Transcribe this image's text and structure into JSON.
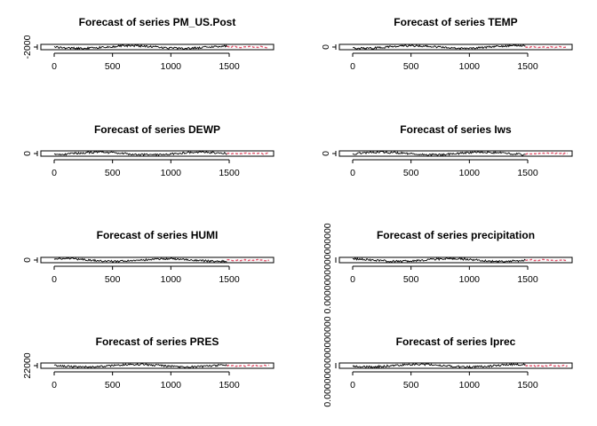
{
  "chart_data": [
    {
      "type": "line",
      "title": "Forecast of series PM_US.Post",
      "xticks": [
        "0",
        "500",
        "1000",
        "1500"
      ],
      "xlim": [
        0,
        1850
      ],
      "yticks": [
        "-2000"
      ],
      "history_range": [
        0,
        1480
      ],
      "forecast_range": [
        1480,
        1840
      ],
      "forecast_color": "#DF536B",
      "history_color": "#000000"
    },
    {
      "type": "line",
      "title": "Forecast of series TEMP",
      "xticks": [
        "0",
        "500",
        "1000",
        "1500"
      ],
      "xlim": [
        0,
        1850
      ],
      "yticks": [
        "0"
      ],
      "history_range": [
        0,
        1480
      ],
      "forecast_range": [
        1480,
        1840
      ],
      "forecast_color": "#DF536B",
      "history_color": "#000000"
    },
    {
      "type": "line",
      "title": "Forecast of series DEWP",
      "xticks": [
        "0",
        "500",
        "1000",
        "1500"
      ],
      "xlim": [
        0,
        1850
      ],
      "yticks": [
        "0"
      ],
      "history_range": [
        0,
        1480
      ],
      "forecast_range": [
        1480,
        1840
      ],
      "forecast_color": "#DF536B",
      "history_color": "#000000"
    },
    {
      "type": "line",
      "title": "Forecast of series Iws",
      "xticks": [
        "0",
        "500",
        "1000",
        "1500"
      ],
      "xlim": [
        0,
        1850
      ],
      "yticks": [
        "0"
      ],
      "history_range": [
        0,
        1480
      ],
      "forecast_range": [
        1480,
        1840
      ],
      "forecast_color": "#DF536B",
      "history_color": "#000000"
    },
    {
      "type": "line",
      "title": "Forecast of series HUMI",
      "xticks": [
        "0",
        "500",
        "1000",
        "1500"
      ],
      "xlim": [
        0,
        1850
      ],
      "yticks": [
        "0"
      ],
      "history_range": [
        0,
        1480
      ],
      "forecast_range": [
        1480,
        1840
      ],
      "forecast_color": "#DF536B",
      "history_color": "#000000"
    },
    {
      "type": "line",
      "title": "Forecast of series precipitation",
      "xticks": [
        "0",
        "500",
        "1000",
        "1500"
      ],
      "xlim": [
        0,
        1850
      ],
      "yticks": [
        "0.0000000000000000 0.0000000000000000"
      ],
      "history_range": [
        0,
        1480
      ],
      "forecast_range": [
        1480,
        1840
      ],
      "forecast_color": "#DF536B",
      "history_color": "#000000"
    },
    {
      "type": "line",
      "title": "Forecast of series PRES",
      "xticks": [
        "0",
        "500",
        "1000",
        "1500"
      ],
      "xlim": [
        0,
        1850
      ],
      "yticks": [
        "22000"
      ],
      "history_range": [
        0,
        1480
      ],
      "forecast_range": [
        1480,
        1840
      ],
      "forecast_color": "#DF536B",
      "history_color": "#000000"
    },
    {
      "type": "line",
      "title": "Forecast of series Iprec",
      "xticks": [
        "0",
        "500",
        "1000",
        "1500"
      ],
      "xlim": [
        0,
        1850
      ],
      "yticks": [],
      "history_range": [
        0,
        1480
      ],
      "forecast_range": [
        1480,
        1840
      ],
      "forecast_color": "#DF536B",
      "history_color": "#000000"
    }
  ]
}
